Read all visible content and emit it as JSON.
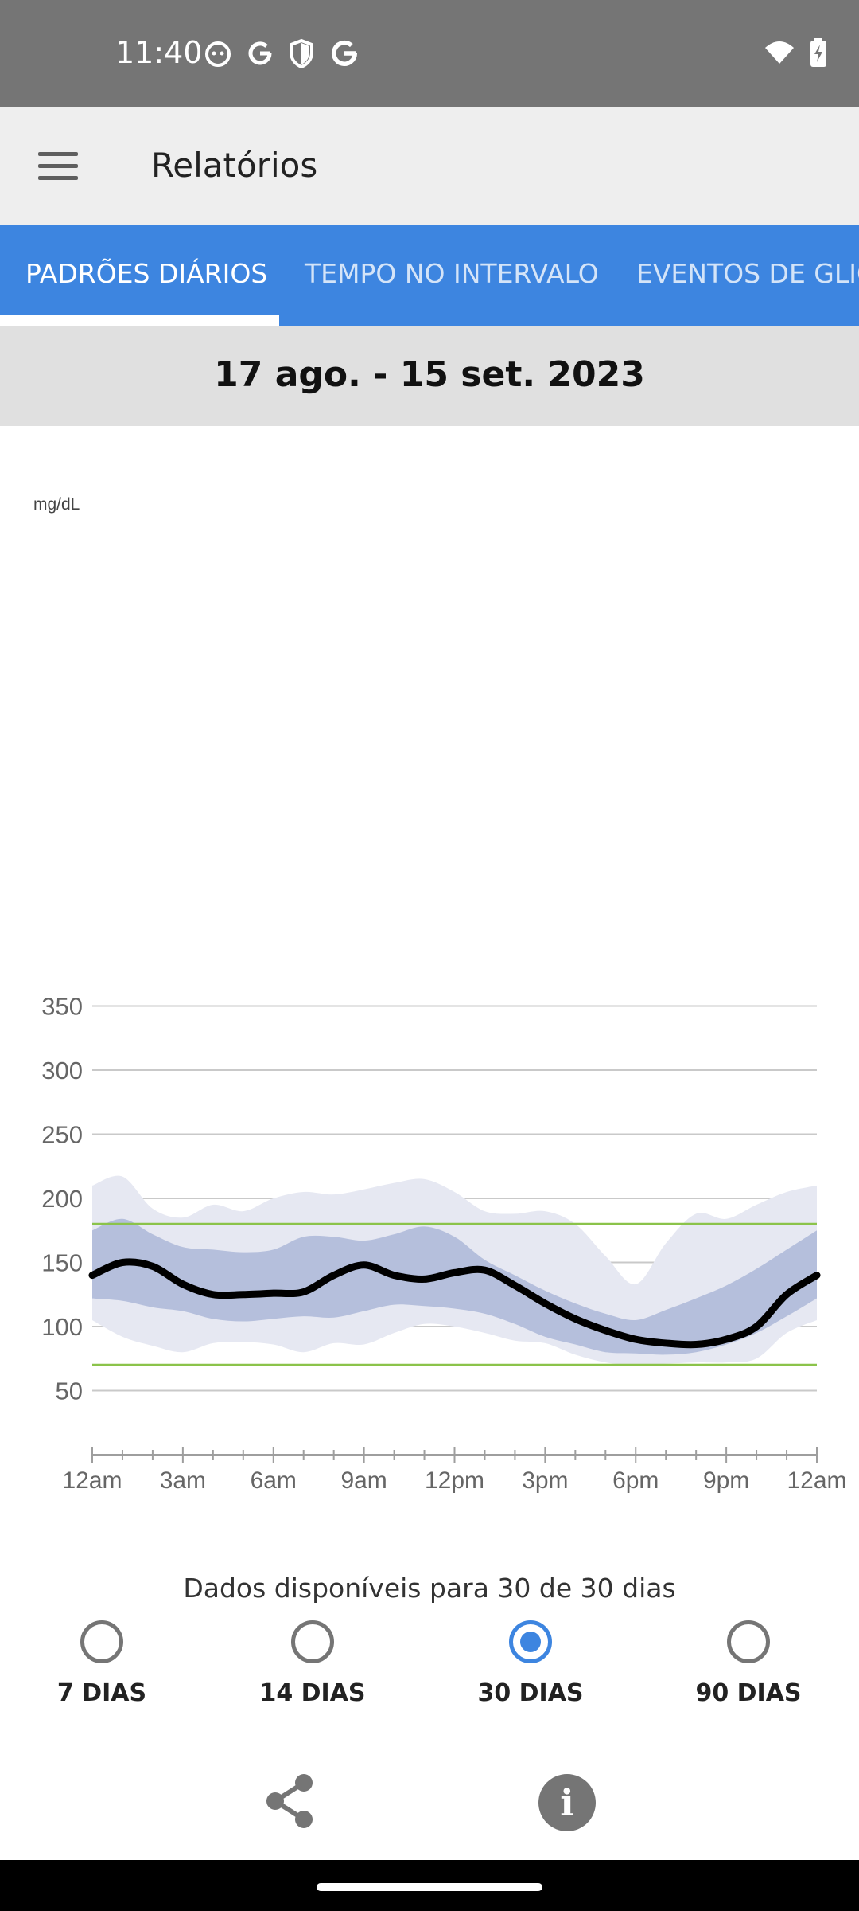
{
  "status_bar": {
    "time": "11:40",
    "left_icons": [
      "cat-icon",
      "google-icon",
      "shield-icon",
      "google-icon"
    ],
    "right_icons": [
      "wifi-icon",
      "battery-charging-icon"
    ]
  },
  "app_bar": {
    "menu_icon": "hamburger-menu-icon",
    "title": "Relatórios"
  },
  "tabs": [
    {
      "label": "PADRÕES DIÁRIOS",
      "active": true
    },
    {
      "label": "TEMPO NO INTERVALO",
      "active": false
    },
    {
      "label": "EVENTOS DE GLICOSE",
      "active": false
    }
  ],
  "date_range": "17 ago. - 15 set. 2023",
  "chart_data": {
    "type": "area",
    "ylabel": "mg/dL",
    "ylim": [
      0,
      350
    ],
    "y_ticks": [
      350,
      300,
      250,
      200,
      150,
      100,
      50
    ],
    "x_ticks": [
      "12am",
      "3am",
      "6am",
      "9am",
      "12pm",
      "3pm",
      "6pm",
      "9pm",
      "12am"
    ],
    "x_hours": [
      0,
      1,
      2,
      3,
      4,
      5,
      6,
      7,
      8,
      9,
      10,
      11,
      12,
      13,
      14,
      15,
      16,
      17,
      18,
      19,
      20,
      21,
      22,
      23,
      24
    ],
    "target_range": [
      70,
      180
    ],
    "series": [
      {
        "name": "",
        "role": "p90",
        "values": [
          210,
          217,
          192,
          185,
          195,
          190,
          200,
          205,
          203,
          207,
          212,
          215,
          205,
          190,
          188,
          190,
          180,
          155,
          133,
          165,
          188,
          184,
          195,
          205,
          210
        ]
      },
      {
        "name": "",
        "role": "p75",
        "values": [
          175,
          184,
          172,
          162,
          160,
          158,
          160,
          170,
          170,
          167,
          172,
          178,
          170,
          152,
          140,
          128,
          118,
          110,
          105,
          113,
          122,
          132,
          145,
          160,
          175
        ]
      },
      {
        "name": "",
        "role": "median",
        "values": [
          140,
          150,
          147,
          133,
          125,
          125,
          126,
          127,
          140,
          148,
          140,
          137,
          142,
          144,
          132,
          118,
          106,
          97,
          90,
          87,
          86,
          90,
          100,
          125,
          140
        ]
      },
      {
        "name": "",
        "role": "p25",
        "values": [
          122,
          120,
          115,
          112,
          106,
          104,
          106,
          108,
          107,
          112,
          117,
          116,
          114,
          110,
          102,
          92,
          86,
          80,
          79,
          78,
          80,
          86,
          95,
          108,
          122
        ]
      },
      {
        "name": "",
        "role": "p10",
        "values": [
          105,
          92,
          85,
          80,
          87,
          88,
          86,
          80,
          87,
          86,
          95,
          102,
          100,
          95,
          89,
          87,
          78,
          72,
          70,
          71,
          72,
          72,
          75,
          95,
          105
        ]
      }
    ],
    "colors": {
      "outer_band": "#e6e8f2",
      "inner_band": "#b5bfdc",
      "median": "#000000",
      "target": "#8bc34a",
      "grid": "#c9c9c9"
    }
  },
  "availability_text": "Dados disponíveis para 30 de 30 dias",
  "range_options": [
    {
      "label": "7 DIAS",
      "checked": false
    },
    {
      "label": "14 DIAS",
      "checked": false
    },
    {
      "label": "30 DIAS",
      "checked": true
    },
    {
      "label": "90 DIAS",
      "checked": false
    }
  ],
  "bottom_actions": {
    "share_icon": "share-icon",
    "info_glyph": "i"
  }
}
